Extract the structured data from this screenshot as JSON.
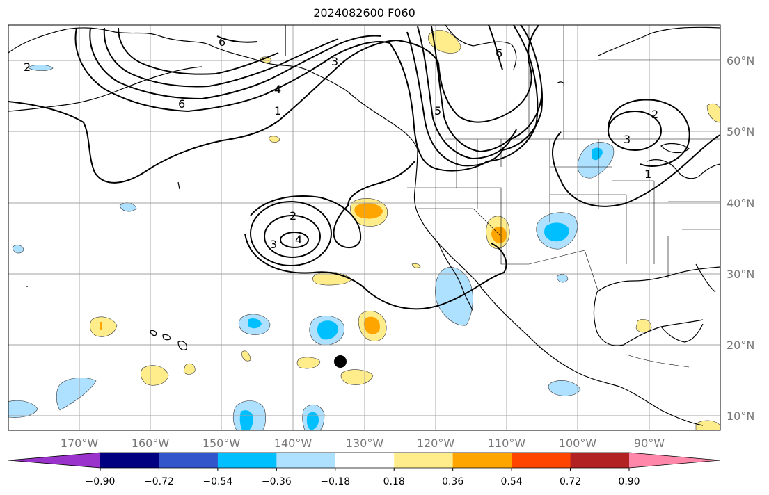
{
  "title": "2024082600 F060",
  "lat_labels": [
    "60°N",
    "50°N",
    "40°N",
    "30°N",
    "20°N",
    "10°N"
  ],
  "lon_labels": [
    "170°W",
    "160°W",
    "150°W",
    "140°W",
    "130°W",
    "120°W",
    "110°W",
    "100°W",
    "90°W"
  ],
  "colorbar": {
    "ticks": [
      "−0.90",
      "−0.72",
      "−0.54",
      "−0.36",
      "−0.18",
      "0.18",
      "0.36",
      "0.54",
      "0.72",
      "0.90"
    ],
    "colors": [
      "#9933cc",
      "#000080",
      "#3355cc",
      "#00bfff",
      "#aee0ff",
      "#ffffff",
      "#ffec8b",
      "#ffa500",
      "#ff4500",
      "#b22222",
      "#ff88aa"
    ]
  },
  "contour_labels": [
    "2",
    "6",
    "6",
    "4",
    "1",
    "3",
    "2",
    "3",
    "4",
    "6",
    "2",
    "3",
    "1",
    "5"
  ],
  "marker": "storm-center-dot"
}
